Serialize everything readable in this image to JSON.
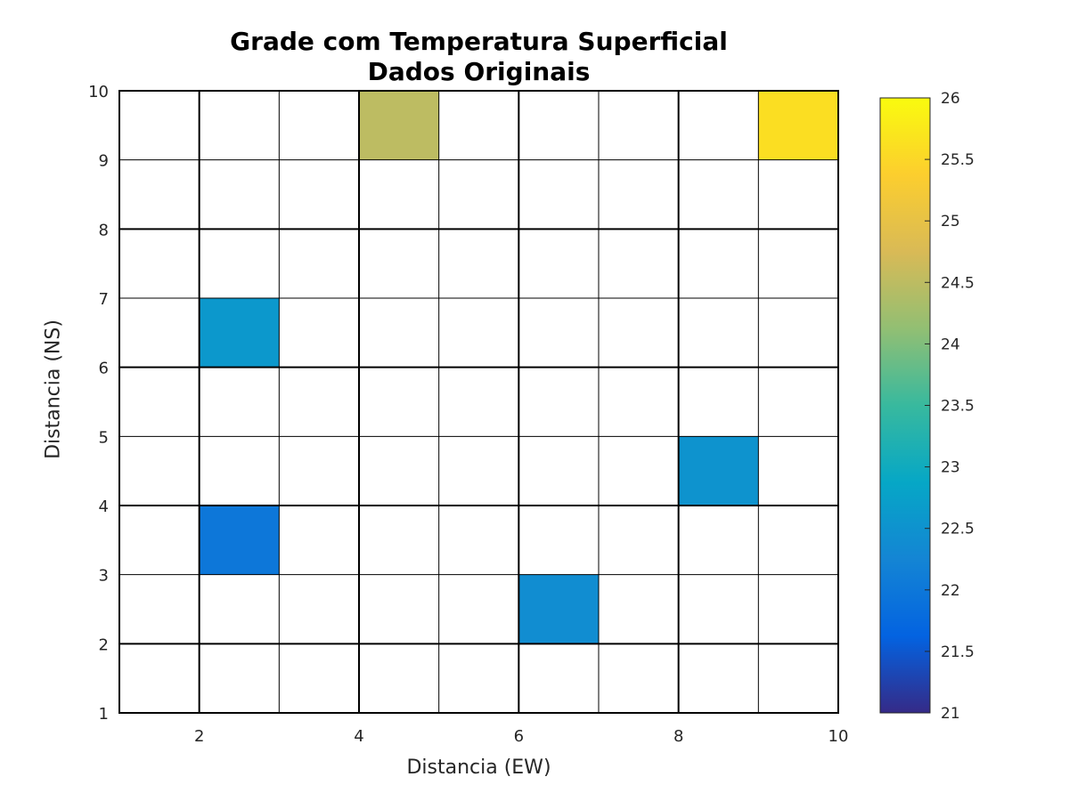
{
  "chart_data": {
    "type": "heatmap",
    "title": "Grade com Temperatura Superficial",
    "subtitle": "Dados Originais",
    "xlabel": "Distancia (EW)",
    "ylabel": "Distancia (NS)",
    "xlim": [
      1,
      10
    ],
    "ylim": [
      1,
      10
    ],
    "xticks": [
      2,
      4,
      6,
      8,
      10
    ],
    "yticks": [
      1,
      2,
      3,
      4,
      5,
      6,
      7,
      8,
      9,
      10
    ],
    "grid": true,
    "empty_cell_color": "#ffffff",
    "cells": [
      {
        "x": [
          4,
          5
        ],
        "y": [
          9,
          10
        ],
        "value": 24.5
      },
      {
        "x": [
          9,
          10
        ],
        "y": [
          9,
          10
        ],
        "value": 25.6
      },
      {
        "x": [
          2,
          3
        ],
        "y": [
          6,
          7
        ],
        "value": 22.6
      },
      {
        "x": [
          8,
          9
        ],
        "y": [
          4,
          5
        ],
        "value": 22.5
      },
      {
        "x": [
          2,
          3
        ],
        "y": [
          3,
          4
        ],
        "value": 22.0
      },
      {
        "x": [
          6,
          7
        ],
        "y": [
          2,
          3
        ],
        "value": 22.4
      }
    ],
    "colorbar": {
      "min": 21,
      "max": 26,
      "ticks": [
        21,
        21.5,
        22,
        22.5,
        23,
        23.5,
        24,
        24.5,
        25,
        25.5,
        26
      ],
      "colormap": "parula",
      "colormap_stops": [
        "#352a87",
        "#0363e1",
        "#1485d4",
        "#06a7c6",
        "#38b99e",
        "#92bf73",
        "#d9ba56",
        "#fcce2e",
        "#f9fb0e"
      ]
    }
  }
}
